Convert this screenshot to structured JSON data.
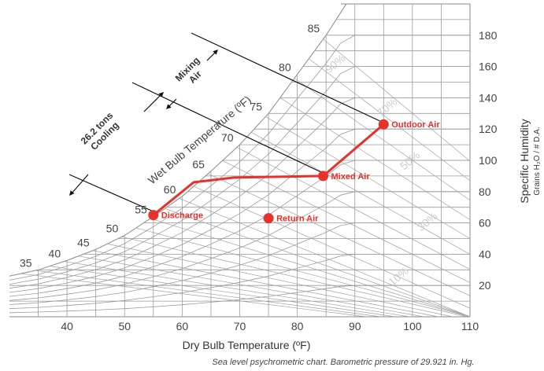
{
  "chart_data": {
    "type": "line",
    "title": "",
    "xlabel": "Dry Bulb Temperature (ºF)",
    "ylabel": "Specific Humidity",
    "ylabel_sub": "Grains H₂O / # D.A.",
    "wet_bulb_label": "Wet Bulb Temperature (ºF)",
    "caption": "Sea level psychrometric chart. Barometric pressure of 29.921 in. Hg.",
    "xlim": [
      30,
      110
    ],
    "ylim": [
      0,
      200
    ],
    "x_ticks": [
      "40",
      "50",
      "60",
      "70",
      "80",
      "90",
      "100",
      "110"
    ],
    "y_ticks": [
      "20",
      "40",
      "60",
      "80",
      "100",
      "120",
      "140",
      "160",
      "180"
    ],
    "wet_bulb_ticks": [
      "35",
      "40",
      "45",
      "50",
      "55",
      "60",
      "65",
      "70",
      "75",
      "80",
      "85"
    ],
    "rh_ticks": [
      "10%",
      "30%",
      "50%",
      "70%",
      "90%"
    ],
    "points": [
      {
        "name": "Discharge",
        "x": 55,
        "y": 65
      },
      {
        "name": "Return Air",
        "x": 75,
        "y": 63
      },
      {
        "name": "Mixed Air",
        "x": 84.5,
        "y": 90
      },
      {
        "name": "Outdoor Air",
        "x": 95,
        "y": 123
      }
    ],
    "process_line": [
      {
        "x": 55,
        "y": 65
      },
      {
        "x": 62,
        "y": 86
      },
      {
        "x": 69,
        "y": 89
      },
      {
        "x": 84.5,
        "y": 90
      },
      {
        "x": 95,
        "y": 123
      }
    ],
    "annotations": [
      "26.2 tons",
      "Cooling",
      "Mixing",
      "Air"
    ],
    "colors": {
      "process": "#e8312a",
      "grid": "#9a9a9a",
      "rh_label": "#cccccc"
    }
  }
}
